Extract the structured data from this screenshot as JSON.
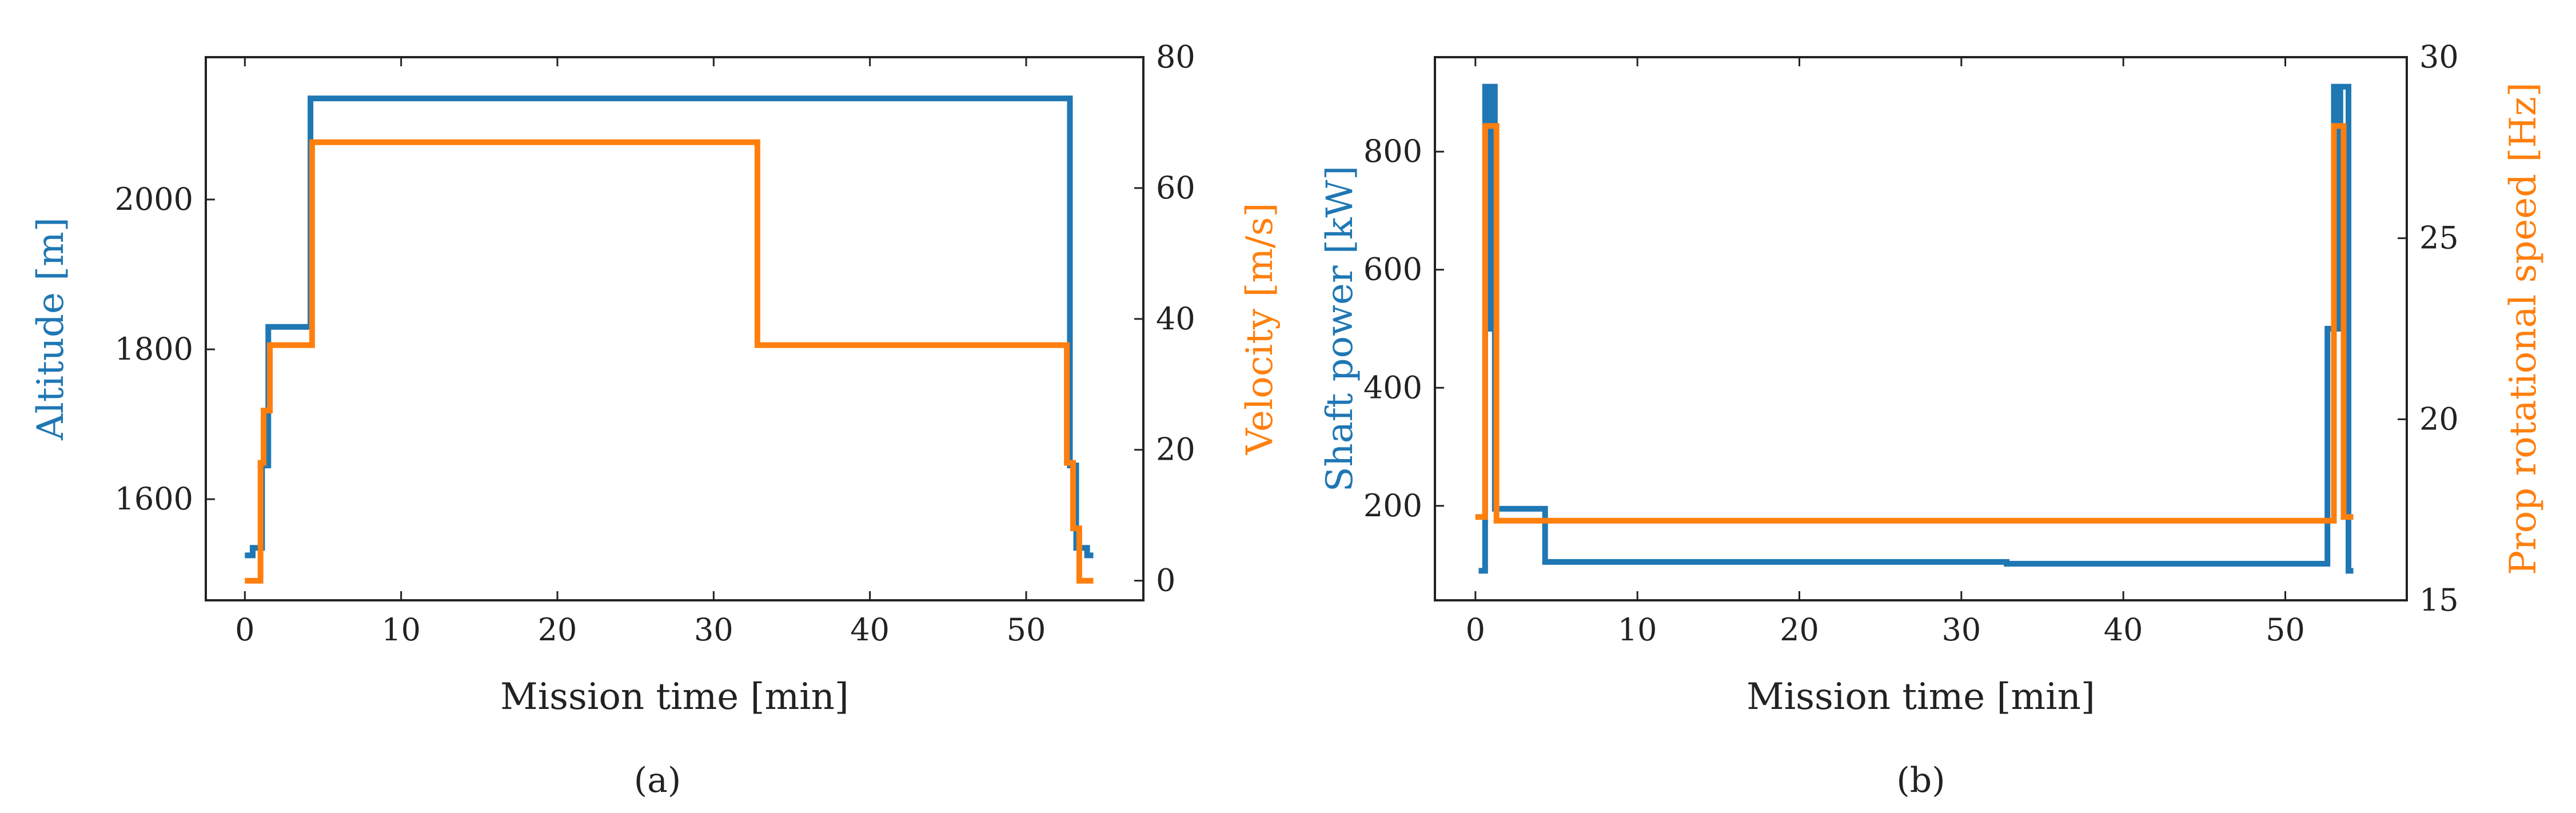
{
  "colors": {
    "blue": "#1f77b4",
    "orange": "#ff7f0e",
    "axis": "#222222"
  },
  "panels": {
    "a": {
      "label": "(a)"
    },
    "b": {
      "label": "(b)"
    }
  },
  "chart_data": [
    {
      "type": "line",
      "step": true,
      "xlabel": "Mission time [min]",
      "xlim": [
        -2.5,
        57.5
      ],
      "xticks": [
        0,
        10,
        20,
        30,
        40,
        50
      ],
      "left_axis": {
        "label": "Altitude [m]",
        "ylim": [
          1465,
          2190
        ],
        "ticks": [
          1600,
          1800,
          2000
        ]
      },
      "right_axis": {
        "label": "Velocity [m/s]",
        "ylim": [
          -3,
          80
        ],
        "ticks": [
          0,
          20,
          40,
          60,
          80
        ]
      },
      "series": [
        {
          "axis": "left",
          "color": "#1f77b4",
          "x": [
            0,
            0.5,
            0.5,
            1.1,
            1.1,
            1.5,
            1.5,
            4.2,
            4.2,
            52.8,
            52.8,
            53.2,
            53.2,
            53.9,
            53.9,
            54.3
          ],
          "y": [
            1525,
            1525,
            1535,
            1535,
            1645,
            1645,
            1830,
            1830,
            2135,
            2135,
            1645,
            1645,
            1535,
            1535,
            1525,
            1525
          ]
        },
        {
          "axis": "right",
          "color": "#ff7f0e",
          "x": [
            0,
            1,
            1,
            1.2,
            1.2,
            1.6,
            1.6,
            4.3,
            4.3,
            32.8,
            32.8,
            52.6,
            52.6,
            53,
            53,
            53.4,
            53.4,
            54.3
          ],
          "y": [
            0,
            0,
            18,
            18,
            26,
            26,
            36,
            36,
            67,
            67,
            36,
            36,
            18,
            18,
            8,
            8,
            0,
            0
          ]
        }
      ]
    },
    {
      "type": "line",
      "step": true,
      "xlabel": "Mission time [min]",
      "xlim": [
        -2.5,
        57.5
      ],
      "xticks": [
        0,
        10,
        20,
        30,
        40,
        50
      ],
      "left_axis": {
        "label": "Shaft power [kW]",
        "ylim": [
          40,
          960
        ],
        "ticks": [
          200,
          400,
          600,
          800
        ]
      },
      "right_axis": {
        "label": "Prop rotational speed [Hz]",
        "ylim": [
          15,
          30
        ],
        "ticks": [
          15,
          20,
          25,
          30
        ]
      },
      "series": [
        {
          "axis": "left",
          "color": "#1f77b4",
          "x": [
            0.2,
            0.6,
            0.6,
            0.9,
            0.9,
            1.1,
            1.1,
            1.2,
            1.2,
            4.3,
            4.3,
            32.8,
            32.8,
            52.6,
            52.6,
            53,
            53,
            53.2,
            53.2,
            53.4,
            53.4,
            53.9,
            53.9,
            54.2
          ],
          "y": [
            90,
            90,
            910,
            910,
            500,
            500,
            910,
            910,
            195,
            195,
            105,
            105,
            102,
            102,
            500,
            500,
            910,
            910,
            500,
            500,
            910,
            910,
            90,
            90
          ]
        },
        {
          "axis": "right",
          "color": "#ff7f0e",
          "x": [
            0,
            0.6,
            0.6,
            1.3,
            1.3,
            53,
            53,
            53.6,
            53.6,
            54.2
          ],
          "y": [
            17.3,
            17.3,
            28.1,
            28.1,
            17.2,
            17.2,
            28.1,
            28.1,
            17.3,
            17.3
          ]
        }
      ]
    }
  ]
}
